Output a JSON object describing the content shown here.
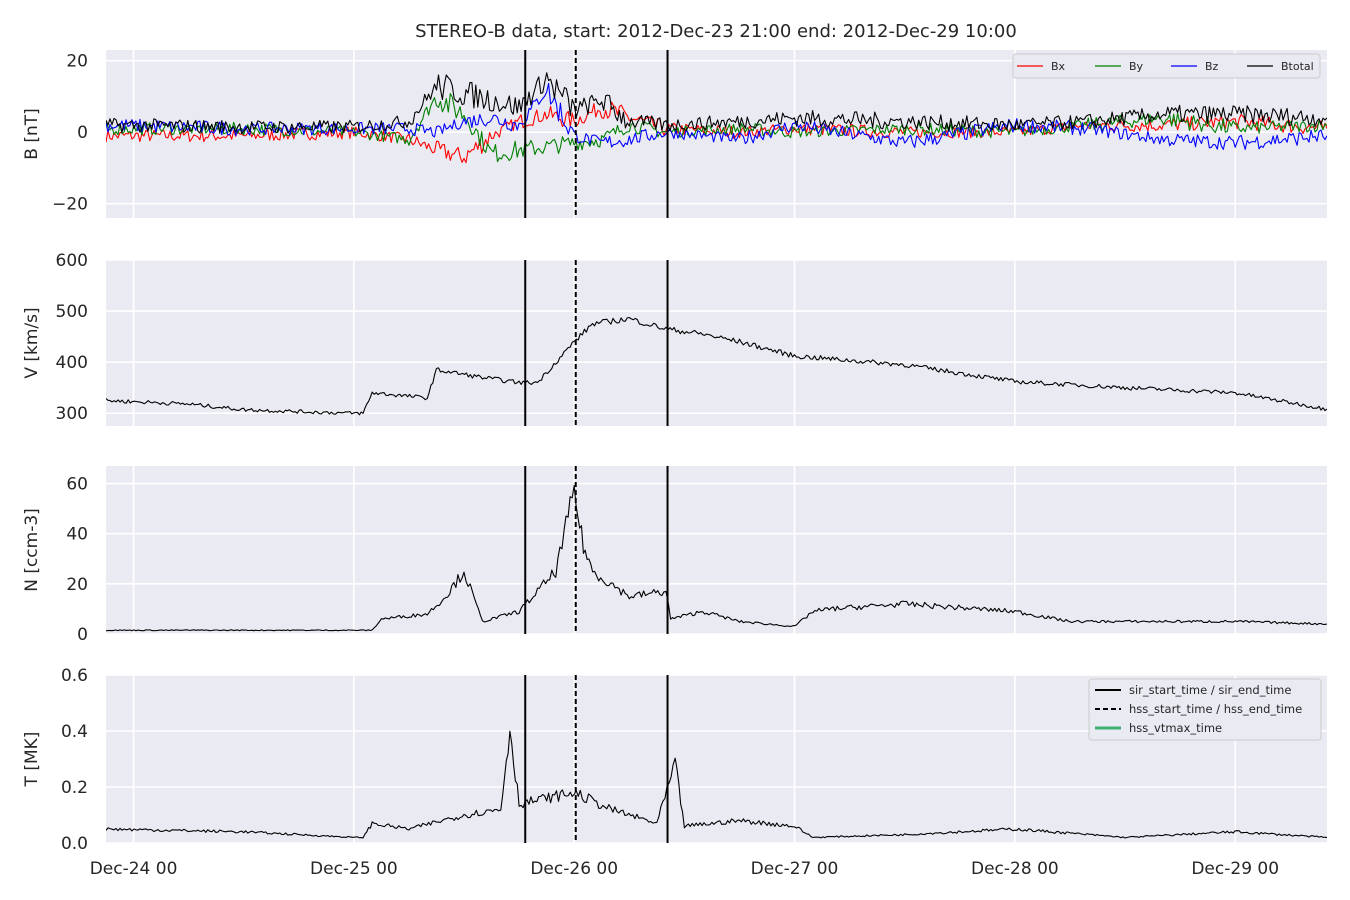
{
  "chart_data": {
    "type": "line",
    "title": "STEREO-B data, start: 2012-Dec-23 21:00  end: 2012-Dec-29 10:00",
    "x_range": [
      "2012-12-23 21:00",
      "2012-12-29 10:00"
    ],
    "x_ticks": [
      "Dec-24 00",
      "Dec-25 00",
      "Dec-26 00",
      "Dec-27 00",
      "Dec-28 00",
      "Dec-29 00"
    ],
    "x_tick_values": [
      "2012-12-24 00:00",
      "2012-12-25 00:00",
      "2012-12-26 00:00",
      "2012-12-27 00:00",
      "2012-12-28 00:00",
      "2012-12-29 00:00"
    ],
    "grid": true,
    "event_markers": {
      "sir_start_time": "2012-12-25 18:40",
      "sir_end_time": "2012-12-26 10:10",
      "hss_start_time": "2012-12-26 00:10"
    },
    "panels": [
      {
        "id": "B",
        "ylabel": "B [nT]",
        "ylim": [
          -24,
          23
        ],
        "yticks": [
          "20",
          "0",
          "−20"
        ],
        "ytick_values": [
          20,
          0,
          -20
        ],
        "legend": "top-right",
        "series": [
          {
            "name": "Bx",
            "color": "#ff0000",
            "x": [
              "2012-12-23 21:00",
              "2012-12-24 12:00",
              "2012-12-25 00:00",
              "2012-12-25 06:00",
              "2012-12-25 09:00",
              "2012-12-25 12:00",
              "2012-12-25 15:00",
              "2012-12-25 18:00",
              "2012-12-25 21:00",
              "2012-12-26 00:00",
              "2012-12-26 03:00",
              "2012-12-26 06:00",
              "2012-12-26 10:00",
              "2012-12-26 18:00",
              "2012-12-27 00:00",
              "2012-12-27 12:00",
              "2012-12-28 00:00",
              "2012-12-28 08:00",
              "2012-12-28 16:00",
              "2012-12-29 00:00",
              "2012-12-29 10:00"
            ],
            "y": [
              -1,
              -1,
              0,
              -2,
              -5,
              -7,
              -1,
              3,
              5,
              3,
              7,
              4,
              1,
              0,
              1,
              0,
              0,
              2,
              2,
              3,
              1
            ]
          },
          {
            "name": "By",
            "color": "#008000",
            "x": [
              "2012-12-23 21:00",
              "2012-12-24 12:00",
              "2012-12-25 00:00",
              "2012-12-25 06:00",
              "2012-12-25 09:00",
              "2012-12-25 12:00",
              "2012-12-25 15:00",
              "2012-12-25 18:00",
              "2012-12-25 21:00",
              "2012-12-26 00:00",
              "2012-12-26 03:00",
              "2012-12-26 06:00",
              "2012-12-26 10:00",
              "2012-12-26 18:00",
              "2012-12-27 00:00",
              "2012-12-27 12:00",
              "2012-12-28 00:00",
              "2012-12-28 08:00",
              "2012-12-28 16:00",
              "2012-12-29 00:00",
              "2012-12-29 10:00"
            ],
            "y": [
              1,
              1,
              0,
              -2,
              10,
              5,
              -6,
              -5,
              -4,
              -3,
              -2,
              2,
              0,
              1,
              0,
              1,
              0,
              2,
              4,
              1,
              2
            ]
          },
          {
            "name": "Bz",
            "color": "#0000ff",
            "x": [
              "2012-12-23 21:00",
              "2012-12-24 12:00",
              "2012-12-25 00:00",
              "2012-12-25 06:00",
              "2012-12-25 09:00",
              "2012-12-25 12:00",
              "2012-12-25 15:00",
              "2012-12-25 18:00",
              "2012-12-25 21:00",
              "2012-12-26 00:00",
              "2012-12-26 03:00",
              "2012-12-26 06:00",
              "2012-12-26 10:00",
              "2012-12-26 18:00",
              "2012-12-27 00:00",
              "2012-12-27 12:00",
              "2012-12-28 00:00",
              "2012-12-28 08:00",
              "2012-12-28 16:00",
              "2012-12-29 00:00",
              "2012-12-29 10:00"
            ],
            "y": [
              2,
              1,
              1,
              1,
              0,
              3,
              4,
              2,
              12,
              -1,
              -3,
              -2,
              0,
              -2,
              2,
              -3,
              2,
              1,
              -2,
              -3,
              -1
            ]
          },
          {
            "name": "Btotal",
            "color": "#000000",
            "x": [
              "2012-12-23 21:00",
              "2012-12-24 12:00",
              "2012-12-25 00:00",
              "2012-12-25 06:00",
              "2012-12-25 09:00",
              "2012-12-25 12:00",
              "2012-12-25 15:00",
              "2012-12-25 18:00",
              "2012-12-25 21:00",
              "2012-12-26 00:00",
              "2012-12-26 03:00",
              "2012-12-26 06:00",
              "2012-12-26 10:00",
              "2012-12-26 18:00",
              "2012-12-27 00:00",
              "2012-12-27 12:00",
              "2012-12-28 00:00",
              "2012-12-28 08:00",
              "2012-12-28 16:00",
              "2012-12-29 00:00",
              "2012-12-29 10:00"
            ],
            "y": [
              2,
              1.5,
              1.5,
              3,
              13,
              11,
              9,
              7,
              15,
              6,
              9,
              3,
              2,
              3,
              4,
              3,
              2,
              3,
              5,
              5,
              4
            ]
          }
        ]
      },
      {
        "id": "V",
        "ylabel": "V [km/s]",
        "ylim": [
          275,
          600
        ],
        "yticks": [
          "600",
          "500",
          "400",
          "300"
        ],
        "ytick_values": [
          600,
          500,
          400,
          300
        ],
        "series": [
          {
            "name": "",
            "color": "#000000",
            "x": [
              "2012-12-23 21:00",
              "2012-12-24 06:00",
              "2012-12-24 12:00",
              "2012-12-24 20:00",
              "2012-12-25 00:00",
              "2012-12-25 01:00",
              "2012-12-25 02:00",
              "2012-12-25 08:00",
              "2012-12-25 09:00",
              "2012-12-25 14:00",
              "2012-12-25 18:00",
              "2012-12-25 20:00",
              "2012-12-26 00:00",
              "2012-12-26 02:00",
              "2012-12-26 06:00",
              "2012-12-26 10:00",
              "2012-12-26 14:00",
              "2012-12-26 18:00",
              "2012-12-27 00:00",
              "2012-12-27 12:00",
              "2012-12-28 00:00",
              "2012-12-28 12:00",
              "2012-12-29 00:00",
              "2012-12-29 10:00"
            ],
            "y": [
              325,
              318,
              307,
              302,
              300,
              300,
              340,
              330,
              385,
              370,
              360,
              360,
              440,
              475,
              485,
              465,
              455,
              440,
              412,
              395,
              362,
              350,
              340,
              308
            ]
          }
        ]
      },
      {
        "id": "N",
        "ylabel": "N [ccm-3]",
        "ylim": [
          0,
          67
        ],
        "yticks": [
          "60",
          "40",
          "20",
          "0"
        ],
        "ytick_values": [
          60,
          40,
          20,
          0
        ],
        "series": [
          {
            "name": "",
            "color": "#000000",
            "x": [
              "2012-12-23 21:00",
              "2012-12-24 12:00",
              "2012-12-25 00:00",
              "2012-12-25 02:00",
              "2012-12-25 03:00",
              "2012-12-25 08:00",
              "2012-12-25 10:00",
              "2012-12-25 12:00",
              "2012-12-25 14:00",
              "2012-12-25 18:00",
              "2012-12-25 22:00",
              "2012-12-26 00:00",
              "2012-12-26 01:00",
              "2012-12-26 02:00",
              "2012-12-26 06:00",
              "2012-12-26 10:00",
              "2012-12-26 10:30",
              "2012-12-26 14:00",
              "2012-12-26 18:00",
              "2012-12-27 00:00",
              "2012-12-27 02:00",
              "2012-12-27 04:00",
              "2012-12-27 12:00",
              "2012-12-28 00:00",
              "2012-12-28 06:00",
              "2012-12-29 00:00",
              "2012-12-29 10:00"
            ],
            "y": [
              1.5,
              1.5,
              1.5,
              1.5,
              6,
              8,
              15,
              25,
              5,
              9,
              25,
              57,
              35,
              25,
              15,
              17,
              6,
              9,
              5,
              3,
              9,
              10,
              12,
              9,
              5,
              5,
              4
            ]
          }
        ]
      },
      {
        "id": "T",
        "ylabel": "T [MK]",
        "ylim": [
          0,
          0.6
        ],
        "yticks": [
          "0.6",
          "0.4",
          "0.2",
          "0.0"
        ],
        "ytick_values": [
          0.6,
          0.4,
          0.2,
          0.0
        ],
        "legend": "top-right",
        "legend_entries": [
          "sir_start_time / sir_end_time",
          "hss_start_time / hss_end_time",
          "hss_vtmax_time"
        ],
        "legend_colors": [
          "#000000",
          "#000000",
          "#3cb371"
        ],
        "series": [
          {
            "name": "",
            "color": "#000000",
            "x": [
              "2012-12-23 21:00",
              "2012-12-24 12:00",
              "2012-12-25 00:00",
              "2012-12-25 01:00",
              "2012-12-25 02:00",
              "2012-12-25 06:00",
              "2012-12-25 12:00",
              "2012-12-25 16:00",
              "2012-12-25 17:00",
              "2012-12-25 18:00",
              "2012-12-26 00:00",
              "2012-12-26 04:00",
              "2012-12-26 09:00",
              "2012-12-26 11:00",
              "2012-12-26 12:00",
              "2012-12-26 18:00",
              "2012-12-27 00:00",
              "2012-12-27 02:00",
              "2012-12-27 12:00",
              "2012-12-28 00:00",
              "2012-12-28 12:00",
              "2012-12-29 00:00",
              "2012-12-29 10:00"
            ],
            "y": [
              0.05,
              0.04,
              0.02,
              0.02,
              0.07,
              0.05,
              0.1,
              0.12,
              0.41,
              0.14,
              0.18,
              0.12,
              0.07,
              0.28,
              0.06,
              0.08,
              0.06,
              0.02,
              0.03,
              0.05,
              0.02,
              0.04,
              0.02
            ]
          }
        ]
      }
    ]
  }
}
